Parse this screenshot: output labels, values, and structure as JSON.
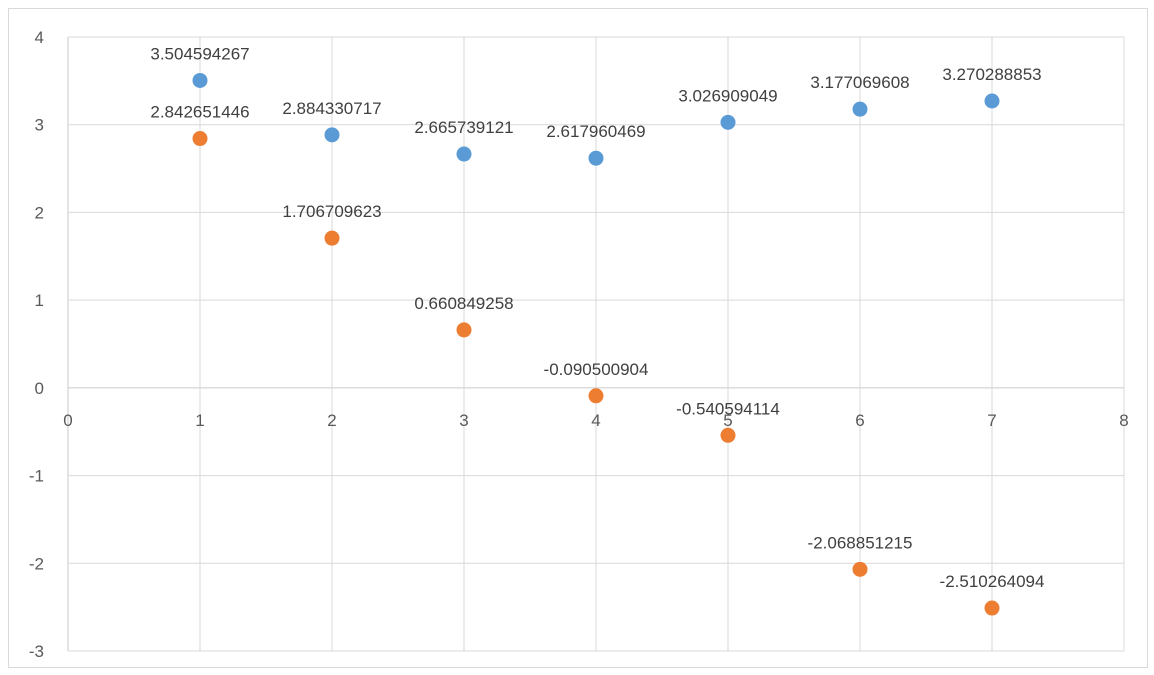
{
  "chart_data": {
    "type": "scatter",
    "title": "",
    "xlabel": "",
    "ylabel": "",
    "xlim": [
      0,
      8
    ],
    "ylim": [
      -3,
      4
    ],
    "x_ticks": [
      "0",
      "1",
      "2",
      "3",
      "4",
      "5",
      "6",
      "7",
      "8"
    ],
    "y_ticks": [
      "4",
      "3",
      "2",
      "1",
      "0",
      "-1",
      "-2",
      "-3"
    ],
    "x_tick_values": [
      0,
      1,
      2,
      3,
      4,
      5,
      6,
      7,
      8
    ],
    "y_tick_values": [
      4,
      3,
      2,
      1,
      0,
      -1,
      -2,
      -3
    ],
    "grid": true,
    "legend": "none",
    "series": [
      {
        "color": "#5B9BD5",
        "x": [
          1,
          2,
          3,
          4,
          5,
          6,
          7
        ],
        "y": [
          3.504594267,
          2.884330717,
          2.665739121,
          2.617960469,
          3.026909049,
          3.177069608,
          3.270288853
        ],
        "labels": [
          "3.504594267",
          "2.884330717",
          "2.665739121",
          "2.617960469",
          "3.026909049",
          "3.177069608",
          "3.270288853"
        ]
      },
      {
        "color": "#ED7D31",
        "x": [
          1,
          2,
          3,
          4,
          5,
          6,
          7
        ],
        "y": [
          2.842651446,
          1.706709623,
          0.660849258,
          -0.090500904,
          -0.540594114,
          -2.068851215,
          -2.510264094
        ],
        "labels": [
          "2.842651446",
          "1.706709623",
          "0.660849258",
          "-0.090500904",
          "-0.540594114",
          "-2.068851215",
          "-2.510264094"
        ]
      }
    ]
  }
}
